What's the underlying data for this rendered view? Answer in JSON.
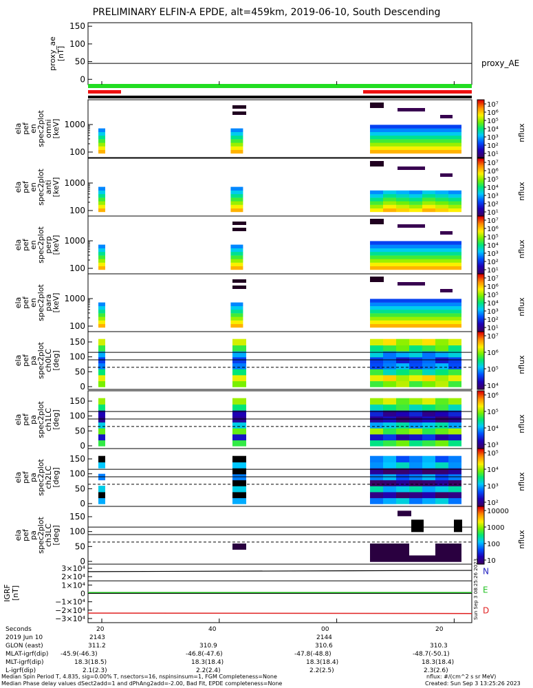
{
  "title": "PRELIMINARY ELFIN-A EPDE, alt=459km, 2019-06-10, South Descending",
  "proxy_ae": {
    "ylabel_lines": [
      "proxy_ae",
      "[nT]"
    ],
    "yticks": [
      "150",
      "100",
      "50",
      "0"
    ],
    "series_label": "proxy_AE",
    "value": 45
  },
  "spec_panels": [
    {
      "ylabel_lines": [
        "ela",
        "pef",
        "en",
        "spec2plot",
        "omni",
        "[keV]"
      ],
      "yticks": [
        "1000",
        "100"
      ]
    },
    {
      "ylabel_lines": [
        "ela",
        "pef",
        "en",
        "spec2plot",
        "anti",
        "[keV]"
      ],
      "yticks": [
        "1000",
        "100"
      ]
    },
    {
      "ylabel_lines": [
        "ela",
        "pef",
        "en",
        "spec2plot",
        "perp",
        "[keV]"
      ],
      "yticks": [
        "1000",
        "100"
      ]
    },
    {
      "ylabel_lines": [
        "ela",
        "pef",
        "en",
        "spec2plot",
        "para",
        "[keV]"
      ],
      "yticks": [
        "1000",
        "100"
      ]
    }
  ],
  "pa_panels": [
    {
      "ylabel_lines": [
        "ela",
        "pef",
        "pa",
        "spec2plot",
        "ch0LC",
        "[deg]"
      ],
      "yticks": [
        "150",
        "100",
        "50",
        "0"
      ]
    },
    {
      "ylabel_lines": [
        "ela",
        "pef",
        "pa",
        "spec2plot",
        "ch1LC",
        "[deg]"
      ],
      "yticks": [
        "150",
        "100",
        "50",
        "0"
      ]
    },
    {
      "ylabel_lines": [
        "ela",
        "pef",
        "pa",
        "spec2plot",
        "ch2LC",
        "[deg]"
      ],
      "yticks": [
        "150",
        "100",
        "50",
        "0"
      ]
    },
    {
      "ylabel_lines": [
        "ela",
        "pef",
        "pa",
        "spec2plot",
        "ch3LC",
        "[deg]"
      ],
      "yticks": [
        "150",
        "100",
        "50",
        "0"
      ]
    }
  ],
  "colorbars": [
    {
      "label": "nflux",
      "ticks": [
        "10⁷",
        "10⁶",
        "10⁵",
        "10⁴",
        "10³",
        "10²",
        "10¹"
      ]
    },
    {
      "label": "nflux",
      "ticks": [
        "10⁷",
        "10⁶",
        "10⁵",
        "10⁴",
        "10³",
        "10²",
        "10¹"
      ]
    },
    {
      "label": "nflux",
      "ticks": [
        "10⁷",
        "10⁶",
        "10⁵",
        "10⁴",
        "10³",
        "10²",
        "10¹"
      ]
    },
    {
      "label": "nflux",
      "ticks": [
        "10⁷",
        "10⁶",
        "10⁵",
        "10⁴",
        "10³",
        "10²",
        "10¹"
      ]
    },
    {
      "label": "nflux",
      "ticks": [
        "10⁷",
        "10⁶",
        "10⁵",
        "10⁴"
      ]
    },
    {
      "label": "nflux",
      "ticks": [
        "10⁶",
        "10⁵",
        "10⁴",
        "10³"
      ]
    },
    {
      "label": "nflux",
      "ticks": [
        "10⁵",
        "10⁴",
        "10³",
        "10²"
      ]
    },
    {
      "label": "nflux",
      "ticks": [
        "10000",
        "1000",
        "100",
        "10"
      ]
    }
  ],
  "igrf": {
    "ylabel_lines": [
      "IGRF",
      "[nT]"
    ],
    "yticks": [
      "3×10⁴",
      "2×10⁴",
      "1×10⁴",
      "0",
      "−1×10⁴",
      "−2×10⁴",
      "−3×10⁴"
    ],
    "components": [
      {
        "label": "N",
        "color": "#2020c0"
      },
      {
        "label": "E",
        "color": "#20c020"
      },
      {
        "label": "D",
        "color": "#e02020"
      }
    ],
    "side_stamp": "Sun Sep 3 08:25:26 2023"
  },
  "chart_data": {
    "type": "heatmap",
    "title": "PRELIMINARY ELFIN-A EPDE, alt=459km, 2019-06-10, South Descending",
    "x_tick_labels": [
      "20",
      "40",
      "00",
      "20"
    ],
    "time_columns_seconds": [
      20,
      43,
      62,
      65,
      68,
      71,
      74,
      77,
      80
    ],
    "spec_ylim_keV": [
      60,
      7000
    ],
    "pa_ylim_deg": [
      0,
      180
    ],
    "pa_reference_lines_deg": [
      115,
      90,
      65
    ],
    "proxy_ae_nT": 45,
    "igrf_nT": {
      "N": 27500,
      "E": 1000,
      "D": -23500
    }
  },
  "footer": {
    "rows": [
      {
        "label": "Seconds",
        "values": [
          "20",
          "40",
          "00",
          "20"
        ]
      },
      {
        "label": "2019 Jun 10",
        "values": [
          "2143",
          "",
          "2144",
          ""
        ]
      },
      {
        "label": "GLON (east)",
        "values": [
          "311.2",
          "310.9",
          "310.6",
          "310.3"
        ]
      },
      {
        "label": "MLAT-igrf(dip)",
        "values": [
          "-45.9(-46.3)",
          "-46.8(-47.6)",
          "-47.8(-48.8)",
          "-48.7(-50.1)"
        ]
      },
      {
        "label": "MLT-igrf(dip)",
        "values": [
          "18.3(18.5)",
          "18.3(18.4)",
          "18.3(18.4)",
          "18.3(18.4)"
        ]
      },
      {
        "label": "L-igrf(dip)",
        "values": [
          "2.1(2.3)",
          "2.2(2.4)",
          "2.2(2.5)",
          "2.3(2.6)"
        ]
      }
    ],
    "note1": "Median Spin Period T, 4.835, sig=0.00% T, nsectors=16, nspinsinsum=1, FGM Completeness=None",
    "note2": "Median Phase delay values dSect2add=1 and dPhAng2add=-2.00, Bad Fit, EPDE completeness=None",
    "units": "nflux: #/(cm^2 s sr MeV)",
    "created": "Created: Sun Sep  3 13:25:26 2023"
  }
}
